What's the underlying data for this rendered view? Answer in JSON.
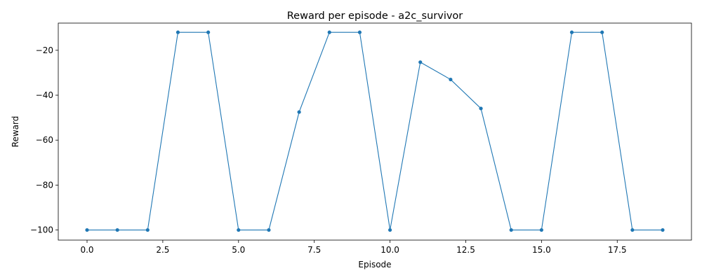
{
  "chart_data": {
    "type": "line",
    "title": "Reward per episode - a2c_survivor",
    "xlabel": "Episode",
    "ylabel": "Reward",
    "xlim": [
      -0.95,
      19.95
    ],
    "ylim": [
      -104.5,
      -7.9
    ],
    "x_ticks": [
      0.0,
      2.5,
      5.0,
      7.5,
      10.0,
      12.5,
      15.0,
      17.5
    ],
    "x_tick_labels": [
      "0.0",
      "2.5",
      "5.0",
      "7.5",
      "10.0",
      "12.5",
      "15.0",
      "17.5"
    ],
    "y_ticks": [
      -100,
      -80,
      -60,
      -40,
      -20
    ],
    "y_tick_labels": [
      "−100",
      "−80",
      "−60",
      "−40",
      "−20"
    ],
    "grid": false,
    "series": [
      {
        "color": "#1f77b4",
        "x": [
          0,
          1,
          2,
          3,
          4,
          5,
          6,
          7,
          8,
          9,
          10,
          11,
          12,
          13,
          14,
          15,
          16,
          17,
          18,
          19
        ],
        "y": [
          -100,
          -100,
          -100,
          -12,
          -12,
          -100,
          -100,
          -47.5,
          -12,
          -12,
          -100,
          -25.3,
          -33,
          -45.9,
          -100,
          -100,
          -12,
          -12,
          -100,
          -100
        ]
      }
    ]
  }
}
